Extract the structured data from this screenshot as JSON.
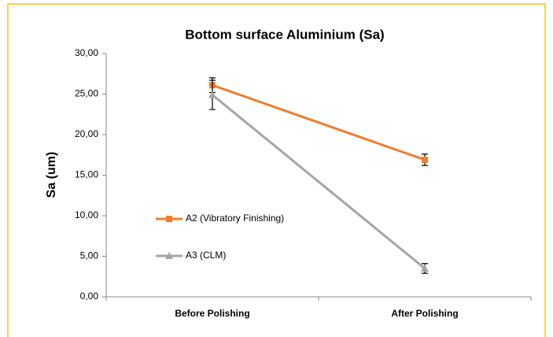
{
  "chart_data": {
    "type": "line",
    "title": "Bottom surface Aluminium (Sa)",
    "y_label": "Sa (um)",
    "categories": [
      "Before Polishing",
      "After Polishing"
    ],
    "series": [
      {
        "name": "A2 (Vibratory  Finishing)",
        "color": "#ed7d31",
        "marker": "square",
        "values": [
          26.1,
          16.9
        ],
        "errors": [
          0.9,
          0.7
        ]
      },
      {
        "name": "A3 (CLM)",
        "color": "#a5a5a5",
        "marker": "triangle",
        "values": [
          24.9,
          3.5
        ],
        "errors": [
          1.8,
          0.6
        ]
      }
    ],
    "ylim": [
      0,
      30
    ],
    "yticks": [
      {
        "value": 0,
        "label": "0,00"
      },
      {
        "value": 5,
        "label": "5,00"
      },
      {
        "value": 10,
        "label": "10,00"
      },
      {
        "value": 15,
        "label": "15,00"
      },
      {
        "value": 20,
        "label": "20,00"
      },
      {
        "value": 25,
        "label": "25,00"
      },
      {
        "value": 30,
        "label": "30,00"
      }
    ],
    "grid": false,
    "legend": "left"
  }
}
